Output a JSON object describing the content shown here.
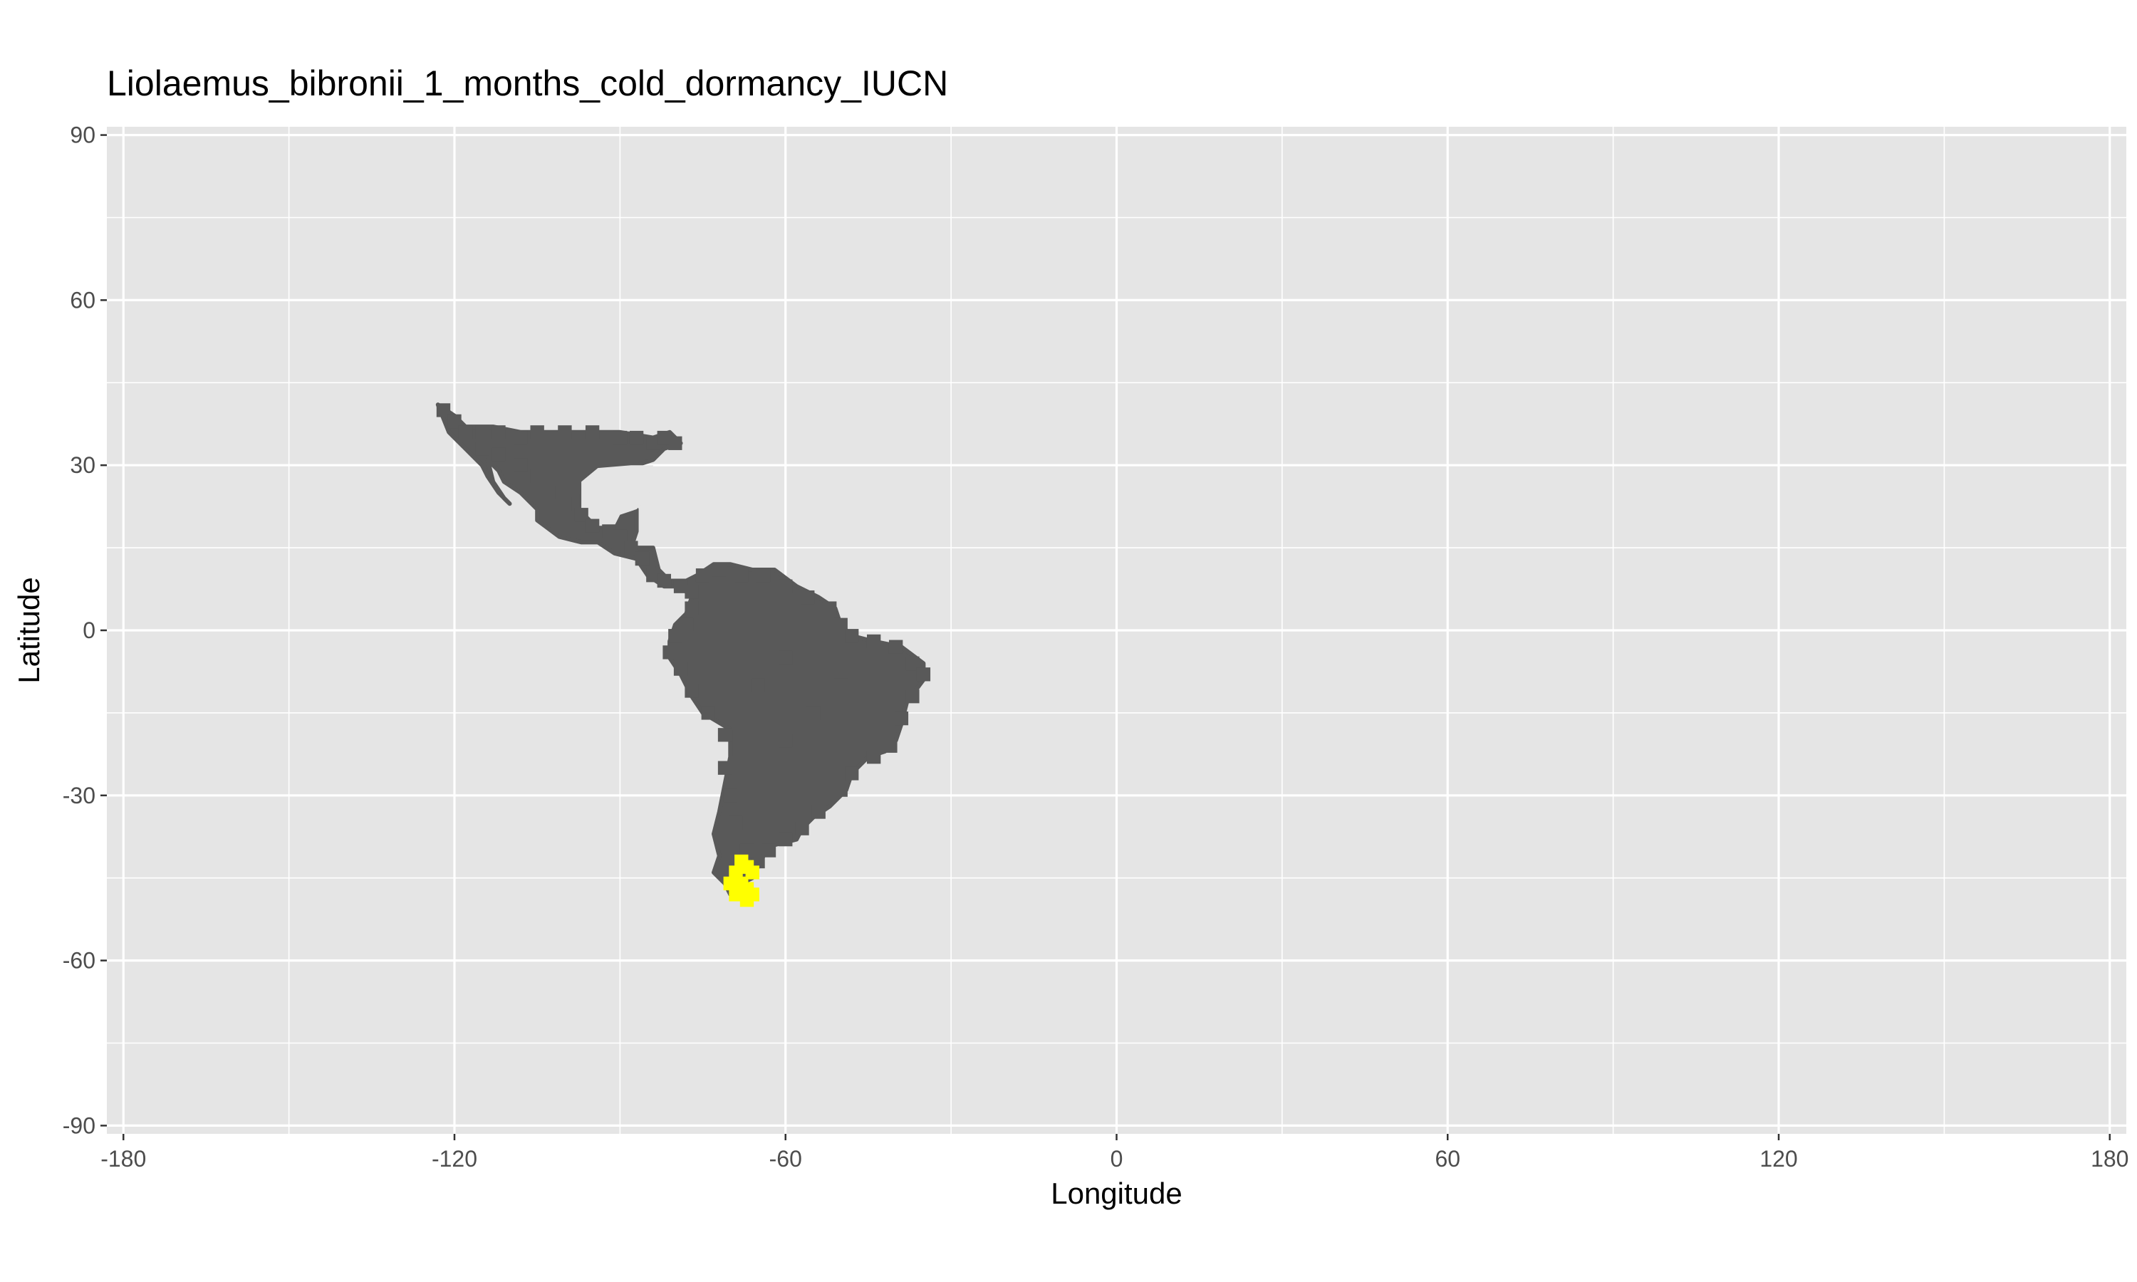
{
  "chart_data": {
    "type": "map",
    "title": "Liolaemus_bibronii_1_months_cold_dormancy_IUCN",
    "xlabel": "Longitude",
    "ylabel": "Latitude",
    "xlim": [
      -183,
      183
    ],
    "ylim": [
      -91.5,
      91.5
    ],
    "x_ticks": [
      -180,
      -120,
      -60,
      0,
      60,
      120,
      180
    ],
    "y_ticks": [
      90,
      60,
      30,
      0,
      -30,
      -60,
      -90
    ],
    "grid": true,
    "legend": "none",
    "colors": {
      "panel_background": "#e5e5e5",
      "grid_major": "#ffffff",
      "land_cells": "#595959",
      "range_cells": "#ffff00",
      "tick_text": "#4d4d4d"
    },
    "series": [
      {
        "label": "land",
        "color": "#595959",
        "cells": [
          [
            -122,
            40
          ],
          [
            -120,
            38
          ],
          [
            -118,
            36
          ],
          [
            -115,
            36
          ],
          [
            -112,
            36
          ],
          [
            -108,
            35
          ],
          [
            -105,
            36
          ],
          [
            -100,
            36
          ],
          [
            -95,
            36
          ],
          [
            -90,
            35
          ],
          [
            -87,
            35
          ],
          [
            -84,
            34
          ],
          [
            -82,
            35
          ],
          [
            -80,
            34
          ],
          [
            -115,
            33
          ],
          [
            -112,
            32
          ],
          [
            -108,
            30
          ],
          [
            -105,
            28
          ],
          [
            -103,
            25
          ],
          [
            -100,
            23
          ],
          [
            -97,
            21
          ],
          [
            -95,
            19
          ],
          [
            -92,
            18
          ],
          [
            -90,
            17
          ],
          [
            -88,
            15
          ],
          [
            -86,
            13
          ],
          [
            -84,
            10
          ],
          [
            -82,
            9
          ],
          [
            -79,
            8
          ],
          [
            -77,
            7
          ],
          [
            -75,
            10
          ],
          [
            -72,
            11
          ],
          [
            -68,
            10
          ],
          [
            -64,
            10
          ],
          [
            -60,
            8
          ],
          [
            -56,
            6
          ],
          [
            -52,
            4
          ],
          [
            -50,
            1
          ],
          [
            -48,
            -1
          ],
          [
            -44,
            -2
          ],
          [
            -40,
            -3
          ],
          [
            -37,
            -6
          ],
          [
            -35,
            -8
          ],
          [
            -37,
            -12
          ],
          [
            -39,
            -16
          ],
          [
            -41,
            -21
          ],
          [
            -44,
            -23
          ],
          [
            -48,
            -26
          ],
          [
            -50,
            -29
          ],
          [
            -54,
            -33
          ],
          [
            -57,
            -36
          ],
          [
            -60,
            -38
          ],
          [
            -63,
            -40
          ],
          [
            -65,
            -42
          ],
          [
            -67,
            -40
          ],
          [
            -69,
            -35
          ],
          [
            -70,
            -30
          ],
          [
            -71,
            -25
          ],
          [
            -71,
            -19
          ],
          [
            -74,
            -15
          ],
          [
            -77,
            -11
          ],
          [
            -79,
            -7
          ],
          [
            -81,
            -4
          ],
          [
            -80,
            -1
          ],
          [
            -78,
            1
          ],
          [
            -77,
            4
          ],
          [
            -60,
            -20
          ],
          [
            -55,
            -15
          ],
          [
            -50,
            -10
          ],
          [
            -60,
            -5
          ],
          [
            -65,
            -10
          ]
        ]
      },
      {
        "label": "range",
        "color": "#ffff00",
        "cells": [
          [
            -68,
            -42
          ],
          [
            -67,
            -43
          ],
          [
            -69,
            -44
          ],
          [
            -66,
            -44
          ],
          [
            -70,
            -46
          ],
          [
            -68,
            -46
          ],
          [
            -67,
            -47
          ],
          [
            -69,
            -48
          ],
          [
            -66,
            -48
          ],
          [
            -67,
            -49
          ]
        ]
      }
    ]
  }
}
